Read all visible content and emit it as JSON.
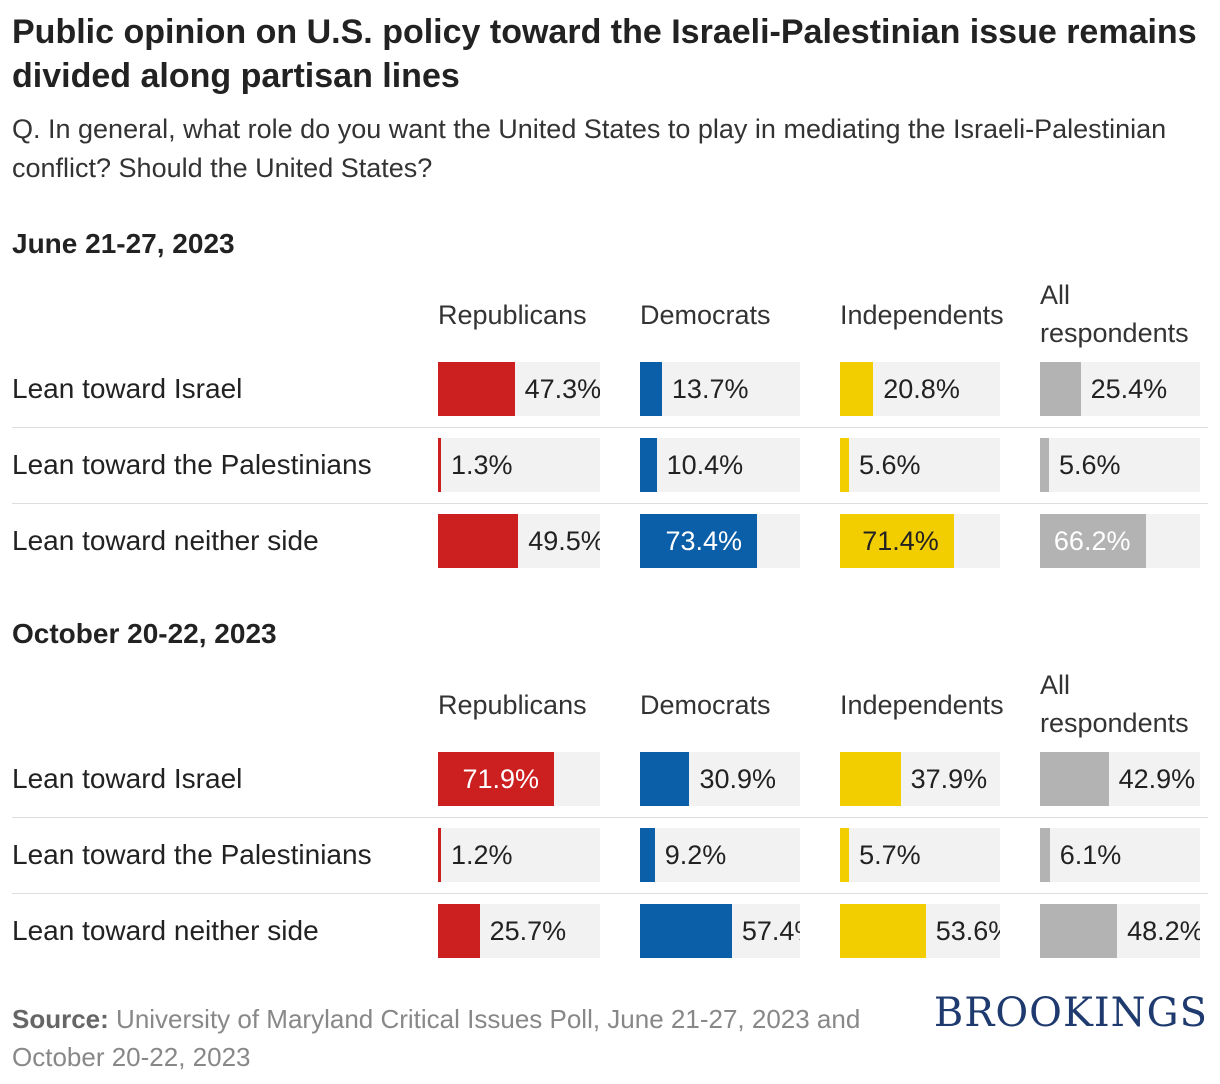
{
  "title": "Public opinion on U.S. policy toward the Israeli-Palestinian issue remains divided along partisan lines",
  "subtitle": "Q. In general, what role do you want the United States to play in mediating the Israeli-Palestinian conflict? Should the United States?",
  "source_label": "Source:",
  "source_text": "University of Maryland Critical Issues Poll, June 21-27, 2023 and October 20-22, 2023",
  "logo_text": "BROOKINGS",
  "colors": {
    "republicans": "#cc1f1f",
    "democrats": "#0b5ea8",
    "independents": "#f2cd00",
    "all": "#b3b3b3",
    "track": "#f2f2f2"
  },
  "chart_data": [
    {
      "type": "bar",
      "title": "June 21-27, 2023",
      "columns": [
        "Republicans",
        "Democrats",
        "Independents",
        "All respondents"
      ],
      "categories": [
        "Lean toward Israel",
        "Lean toward the Palestinians",
        "Lean toward neither side"
      ],
      "series": [
        {
          "name": "Republicans",
          "values": [
            47.3,
            1.3,
            49.5
          ]
        },
        {
          "name": "Democrats",
          "values": [
            13.7,
            10.4,
            73.4
          ]
        },
        {
          "name": "Independents",
          "values": [
            20.8,
            5.6,
            71.4
          ]
        },
        {
          "name": "All respondents",
          "values": [
            25.4,
            5.6,
            66.2
          ]
        }
      ],
      "ylim": [
        0,
        100
      ]
    },
    {
      "type": "bar",
      "title": "October 20-22, 2023",
      "columns": [
        "Republicans",
        "Democrats",
        "Independents",
        "All respondents"
      ],
      "categories": [
        "Lean toward Israel",
        "Lean toward the Palestinians",
        "Lean toward neither side"
      ],
      "series": [
        {
          "name": "Republicans",
          "values": [
            71.9,
            1.2,
            25.7
          ]
        },
        {
          "name": "Democrats",
          "values": [
            30.9,
            9.2,
            57.4
          ]
        },
        {
          "name": "Independents",
          "values": [
            37.9,
            5.7,
            53.6
          ]
        },
        {
          "name": "All respondents",
          "values": [
            42.9,
            6.1,
            48.2
          ]
        }
      ],
      "ylim": [
        0,
        100
      ]
    }
  ]
}
